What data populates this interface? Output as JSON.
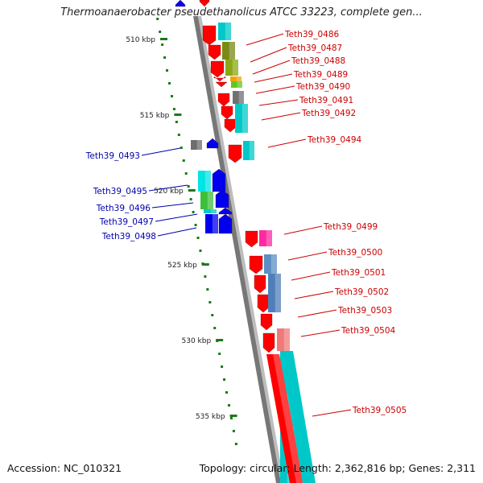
{
  "title": "Thermoanaerobacter pseudethanolicus ATCC 33223, complete gen...",
  "accession_label": "Accession: NC_010321",
  "summary": "Topology: circular; Length: 2,362,816 bp; Genes: 2,311",
  "ruler": {
    "tick_labels": [
      "510 kbp",
      "515 kbp",
      "520 kbp",
      "525 kbp",
      "530 kbp",
      "535 kbp"
    ]
  },
  "genes_right": [
    {
      "label": "Teth39_0486"
    },
    {
      "label": "Teth39_0487"
    },
    {
      "label": "Teth39_0488"
    },
    {
      "label": "Teth39_0489"
    },
    {
      "label": "Teth39_0490"
    },
    {
      "label": "Teth39_0491"
    },
    {
      "label": "Teth39_0492"
    },
    {
      "label": "Teth39_0494"
    },
    {
      "label": "Teth39_0499"
    },
    {
      "label": "Teth39_0500"
    },
    {
      "label": "Teth39_0501"
    },
    {
      "label": "Teth39_0502"
    },
    {
      "label": "Teth39_0503"
    },
    {
      "label": "Teth39_0504"
    },
    {
      "label": "Teth39_0505"
    }
  ],
  "genes_left": [
    {
      "label": "Teth39_0493"
    },
    {
      "label": "Teth39_0495"
    },
    {
      "label": "Teth39_0496"
    },
    {
      "label": "Teth39_0497"
    },
    {
      "label": "Teth39_0498"
    }
  ],
  "colors": {
    "forward_gene": "#ff0000",
    "reverse_gene": "#0000ee",
    "backbone": "#888888",
    "ruler_tick": "#1a7a1a",
    "label_right": "#cc0000",
    "label_left": "#0000aa"
  }
}
